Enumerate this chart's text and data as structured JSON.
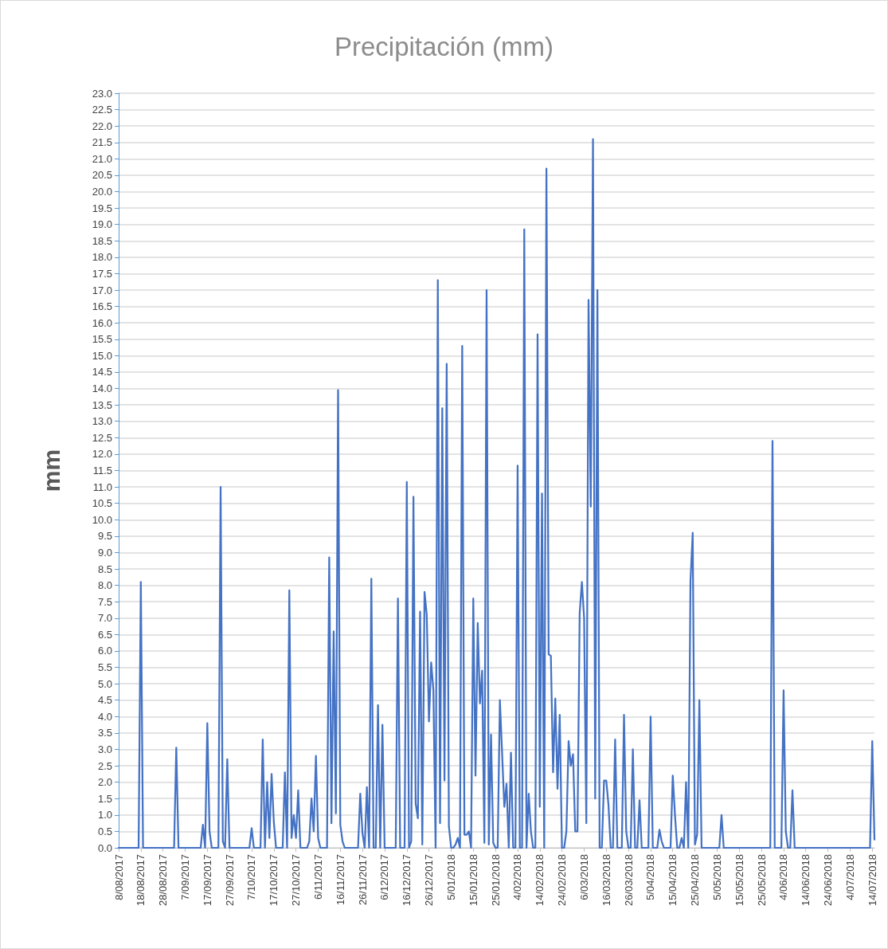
{
  "chart_data": {
    "type": "line",
    "title": "Precipitación (mm)",
    "ylabel": "mm",
    "color": "#4472c4",
    "marker": "none",
    "line_style": "solid",
    "grid": "y",
    "x": [
      "2017-08-08",
      "2017-08-17",
      "2017-08-18",
      "2017-08-19",
      "2017-09-02",
      "2017-09-03",
      "2017-09-04",
      "2017-09-14",
      "2017-09-15",
      "2017-09-16",
      "2017-09-17",
      "2017-09-18",
      "2017-09-19",
      "2017-09-22",
      "2017-09-23",
      "2017-09-24",
      "2017-09-25",
      "2017-09-26",
      "2017-09-27",
      "2017-10-06",
      "2017-10-07",
      "2017-10-08",
      "2017-10-11",
      "2017-10-12",
      "2017-10-13",
      "2017-10-14",
      "2017-10-15",
      "2017-10-16",
      "2017-10-17",
      "2017-10-18",
      "2017-10-21",
      "2017-10-22",
      "2017-10-23",
      "2017-10-24",
      "2017-10-25",
      "2017-10-26",
      "2017-10-27",
      "2017-10-28",
      "2017-10-29",
      "2017-11-01",
      "2017-11-02",
      "2017-11-03",
      "2017-11-04",
      "2017-11-05",
      "2017-11-06",
      "2017-11-07",
      "2017-11-10",
      "2017-11-11",
      "2017-11-12",
      "2017-11-13",
      "2017-11-14",
      "2017-11-15",
      "2017-11-16",
      "2017-11-17",
      "2017-11-18",
      "2017-11-24",
      "2017-11-25",
      "2017-11-26",
      "2017-11-27",
      "2017-11-28",
      "2017-11-29",
      "2017-11-30",
      "2017-12-01",
      "2017-12-02",
      "2017-12-03",
      "2017-12-04",
      "2017-12-05",
      "2017-12-06",
      "2017-12-11",
      "2017-12-12",
      "2017-12-13",
      "2017-12-15",
      "2017-12-16",
      "2017-12-17",
      "2017-12-18",
      "2017-12-19",
      "2017-12-20",
      "2017-12-21",
      "2017-12-22",
      "2017-12-23",
      "2017-12-24",
      "2017-12-25",
      "2017-12-26",
      "2017-12-27",
      "2017-12-28",
      "2017-12-29",
      "2017-12-30",
      "2017-12-31",
      "2018-01-01",
      "2018-01-02",
      "2018-01-03",
      "2018-01-04",
      "2018-01-05",
      "2018-01-06",
      "2018-01-07",
      "2018-01-08",
      "2018-01-09",
      "2018-01-10",
      "2018-01-11",
      "2018-01-12",
      "2018-01-13",
      "2018-01-14",
      "2018-01-15",
      "2018-01-16",
      "2018-01-17",
      "2018-01-18",
      "2018-01-19",
      "2018-01-20",
      "2018-01-21",
      "2018-01-22",
      "2018-01-23",
      "2018-01-24",
      "2018-01-25",
      "2018-01-26",
      "2018-01-27",
      "2018-01-29",
      "2018-01-30",
      "2018-01-31",
      "2018-02-01",
      "2018-02-02",
      "2018-02-03",
      "2018-02-04",
      "2018-02-05",
      "2018-02-06",
      "2018-02-07",
      "2018-02-08",
      "2018-02-09",
      "2018-02-10",
      "2018-02-11",
      "2018-02-12",
      "2018-02-13",
      "2018-02-14",
      "2018-02-15",
      "2018-02-16",
      "2018-02-17",
      "2018-02-18",
      "2018-02-19",
      "2018-02-20",
      "2018-02-21",
      "2018-02-22",
      "2018-02-23",
      "2018-02-24",
      "2018-02-25",
      "2018-02-26",
      "2018-02-27",
      "2018-02-28",
      "2018-03-01",
      "2018-03-02",
      "2018-03-03",
      "2018-03-04",
      "2018-03-05",
      "2018-03-06",
      "2018-03-07",
      "2018-03-08",
      "2018-03-09",
      "2018-03-10",
      "2018-03-11",
      "2018-03-12",
      "2018-03-13",
      "2018-03-14",
      "2018-03-15",
      "2018-03-16",
      "2018-03-17",
      "2018-03-18",
      "2018-03-19",
      "2018-03-20",
      "2018-03-21",
      "2018-03-23",
      "2018-03-24",
      "2018-03-25",
      "2018-03-26",
      "2018-03-27",
      "2018-03-28",
      "2018-03-29",
      "2018-03-30",
      "2018-03-31",
      "2018-04-01",
      "2018-04-04",
      "2018-04-05",
      "2018-04-06",
      "2018-04-08",
      "2018-04-09",
      "2018-04-10",
      "2018-04-11",
      "2018-04-14",
      "2018-04-15",
      "2018-04-16",
      "2018-04-17",
      "2018-04-18",
      "2018-04-19",
      "2018-04-20",
      "2018-04-21",
      "2018-04-22",
      "2018-04-23",
      "2018-04-24",
      "2018-04-25",
      "2018-04-26",
      "2018-04-27",
      "2018-04-28",
      "2018-05-06",
      "2018-05-07",
      "2018-05-08",
      "2018-05-29",
      "2018-05-30",
      "2018-05-31",
      "2018-06-03",
      "2018-06-04",
      "2018-06-05",
      "2018-06-06",
      "2018-06-07",
      "2018-06-08",
      "2018-06-09",
      "2018-07-13",
      "2018-07-14",
      "2018-07-15"
    ],
    "values": [
      0,
      0,
      8.1,
      0,
      0,
      3.05,
      0,
      0,
      0.7,
      0,
      3.8,
      0.5,
      0,
      0,
      11.0,
      0.2,
      0,
      2.7,
      0,
      0,
      0.6,
      0,
      0,
      3.3,
      0,
      2.0,
      0.3,
      2.25,
      0.8,
      0,
      0,
      2.3,
      0,
      7.85,
      0.3,
      1.0,
      0.3,
      1.75,
      0,
      0,
      0.2,
      1.5,
      0.5,
      2.8,
      0.3,
      0,
      0,
      8.85,
      0.75,
      6.6,
      1.05,
      13.95,
      0.7,
      0.2,
      0,
      0,
      1.65,
      0.45,
      0,
      1.85,
      0,
      8.2,
      0,
      0,
      4.35,
      0,
      3.75,
      0,
      0,
      7.6,
      0,
      0,
      11.15,
      0,
      0.2,
      10.7,
      1.35,
      0.9,
      7.2,
      0.1,
      7.8,
      7.1,
      3.85,
      5.65,
      4.8,
      0,
      17.3,
      0.75,
      13.4,
      2.05,
      14.75,
      0.65,
      0,
      0,
      0.1,
      0.3,
      0,
      15.3,
      0.4,
      0.4,
      0.5,
      0,
      7.6,
      2.2,
      6.85,
      4.4,
      5.4,
      0.15,
      17.0,
      0.1,
      3.45,
      0.15,
      0,
      0,
      4.5,
      1.25,
      1.95,
      0,
      2.9,
      0,
      0,
      11.65,
      0,
      0,
      18.85,
      0,
      1.65,
      0.5,
      0,
      0,
      15.65,
      1.25,
      10.8,
      0,
      20.7,
      5.9,
      5.85,
      2.3,
      4.55,
      1.8,
      4.05,
      0,
      0,
      0.5,
      3.25,
      2.5,
      2.85,
      0.5,
      0.5,
      7.15,
      8.1,
      7.0,
      0.75,
      16.7,
      10.4,
      21.6,
      1.5,
      17.0,
      0,
      0,
      2.05,
      2.05,
      1.3,
      0,
      0,
      3.3,
      0,
      0,
      4.05,
      0.5,
      0,
      0,
      3.0,
      0,
      0,
      1.45,
      0,
      0,
      4.0,
      0,
      0,
      0.55,
      0.2,
      0,
      0,
      2.2,
      1.0,
      0,
      0,
      0.3,
      0,
      2.0,
      0,
      8.15,
      9.6,
      0.1,
      0.4,
      4.5,
      0,
      0,
      1.0,
      0,
      0,
      12.4,
      0,
      0,
      4.8,
      0.5,
      0,
      0,
      1.75,
      0,
      0,
      3.25,
      0.25
    ],
    "xlim": [
      "2017-08-08",
      "2018-07-15"
    ],
    "xticks": [
      {
        "value": "2017-08-08",
        "label": "8/08/2017"
      },
      {
        "value": "2017-08-18",
        "label": "18/08/2017"
      },
      {
        "value": "2017-08-28",
        "label": "28/08/2017"
      },
      {
        "value": "2017-09-07",
        "label": "7/09/2017"
      },
      {
        "value": "2017-09-17",
        "label": "17/09/2017"
      },
      {
        "value": "2017-09-27",
        "label": "27/09/2017"
      },
      {
        "value": "2017-10-07",
        "label": "7/10/2017"
      },
      {
        "value": "2017-10-17",
        "label": "17/10/2017"
      },
      {
        "value": "2017-10-27",
        "label": "27/10/2017"
      },
      {
        "value": "2017-11-06",
        "label": "6/11/2017"
      },
      {
        "value": "2017-11-16",
        "label": "16/11/2017"
      },
      {
        "value": "2017-11-26",
        "label": "26/11/2017"
      },
      {
        "value": "2017-12-06",
        "label": "6/12/2017"
      },
      {
        "value": "2017-12-16",
        "label": "16/12/2017"
      },
      {
        "value": "2017-12-26",
        "label": "26/12/2017"
      },
      {
        "value": "2018-01-05",
        "label": "5/01/2018"
      },
      {
        "value": "2018-01-15",
        "label": "15/01/2018"
      },
      {
        "value": "2018-01-25",
        "label": "25/01/2018"
      },
      {
        "value": "2018-02-04",
        "label": "4/02/2018"
      },
      {
        "value": "2018-02-14",
        "label": "14/02/2018"
      },
      {
        "value": "2018-02-24",
        "label": "24/02/2018"
      },
      {
        "value": "2018-03-06",
        "label": "6/03/2018"
      },
      {
        "value": "2018-03-16",
        "label": "16/03/2018"
      },
      {
        "value": "2018-03-26",
        "label": "26/03/2018"
      },
      {
        "value": "2018-04-05",
        "label": "5/04/2018"
      },
      {
        "value": "2018-04-15",
        "label": "15/04/2018"
      },
      {
        "value": "2018-04-25",
        "label": "25/04/2018"
      },
      {
        "value": "2018-05-05",
        "label": "5/05/2018"
      },
      {
        "value": "2018-05-15",
        "label": "15/05/2018"
      },
      {
        "value": "2018-05-25",
        "label": "25/05/2018"
      },
      {
        "value": "2018-06-04",
        "label": "4/06/2018"
      },
      {
        "value": "2018-06-14",
        "label": "14/06/2018"
      },
      {
        "value": "2018-06-24",
        "label": "24/06/2018"
      },
      {
        "value": "2018-07-04",
        "label": "4/07/2018"
      },
      {
        "value": "2018-07-14",
        "label": "14/07/2018"
      }
    ],
    "ylim": [
      0,
      23
    ],
    "yticks": [
      {
        "value": 0,
        "label": "0.0"
      },
      {
        "value": 0.5,
        "label": "0.5"
      },
      {
        "value": 1,
        "label": "1.0"
      },
      {
        "value": 1.5,
        "label": "1.5"
      },
      {
        "value": 2,
        "label": "2.0"
      },
      {
        "value": 2.5,
        "label": "2.5"
      },
      {
        "value": 3,
        "label": "3.0"
      },
      {
        "value": 3.5,
        "label": "3.5"
      },
      {
        "value": 4,
        "label": "4.0"
      },
      {
        "value": 4.5,
        "label": "4.5"
      },
      {
        "value": 5,
        "label": "5.0"
      },
      {
        "value": 5.5,
        "label": "5.5"
      },
      {
        "value": 6,
        "label": "6.0"
      },
      {
        "value": 6.5,
        "label": "6.5"
      },
      {
        "value": 7,
        "label": "7.0"
      },
      {
        "value": 7.5,
        "label": "7.5"
      },
      {
        "value": 8,
        "label": "8.0"
      },
      {
        "value": 8.5,
        "label": "8.5"
      },
      {
        "value": 9,
        "label": "9.0"
      },
      {
        "value": 9.5,
        "label": "9.5"
      },
      {
        "value": 10,
        "label": "10.0"
      },
      {
        "value": 10.5,
        "label": "10.5"
      },
      {
        "value": 11,
        "label": "11.0"
      },
      {
        "value": 11.5,
        "label": "11.5"
      },
      {
        "value": 12,
        "label": "12.0"
      },
      {
        "value": 12.5,
        "label": "12.5"
      },
      {
        "value": 13,
        "label": "13.0"
      },
      {
        "value": 13.5,
        "label": "13.5"
      },
      {
        "value": 14,
        "label": "14.0"
      },
      {
        "value": 14.5,
        "label": "14.5"
      },
      {
        "value": 15,
        "label": "15.0"
      },
      {
        "value": 15.5,
        "label": "15.5"
      },
      {
        "value": 16,
        "label": "16.0"
      },
      {
        "value": 16.5,
        "label": "16.5"
      },
      {
        "value": 17,
        "label": "17.0"
      },
      {
        "value": 17.5,
        "label": "17.5"
      },
      {
        "value": 18,
        "label": "18.0"
      },
      {
        "value": 18.5,
        "label": "18.5"
      },
      {
        "value": 19,
        "label": "19.0"
      },
      {
        "value": 19.5,
        "label": "19.5"
      },
      {
        "value": 20,
        "label": "20.0"
      },
      {
        "value": 20.5,
        "label": "20.5"
      },
      {
        "value": 21,
        "label": "21.0"
      },
      {
        "value": 21.5,
        "label": "21.5"
      },
      {
        "value": 22,
        "label": "22.0"
      },
      {
        "value": 22.5,
        "label": "22.5"
      },
      {
        "value": 23,
        "label": "23.0"
      }
    ]
  }
}
